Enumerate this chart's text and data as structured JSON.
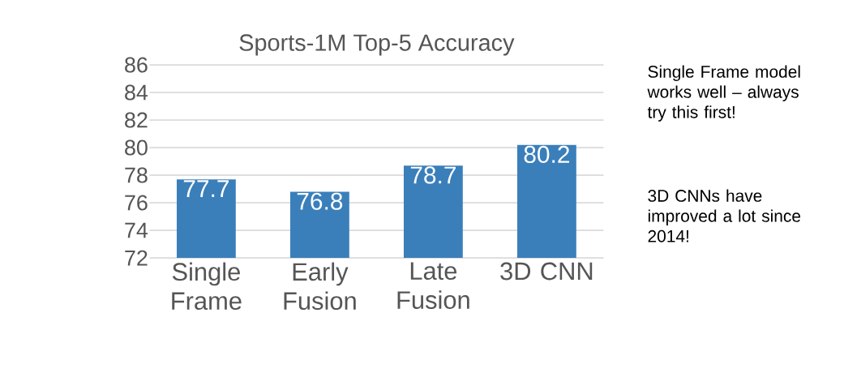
{
  "chart_data": {
    "type": "bar",
    "title": "Sports-1M Top-5 Accuracy",
    "categories": [
      "Single Frame",
      "Early Fusion",
      "Late Fusion",
      "3D CNN"
    ],
    "values": [
      77.7,
      76.8,
      78.7,
      80.2
    ],
    "color": "#3a7fba",
    "ylim": [
      72,
      86
    ],
    "yticks": [
      72,
      74,
      76,
      78,
      80,
      82,
      84,
      86
    ],
    "grid": "y",
    "data_labels": true,
    "annotations": [
      "Single Frame model works well – always try this first!",
      "3D CNNs have improved a lot since 2014!"
    ]
  }
}
